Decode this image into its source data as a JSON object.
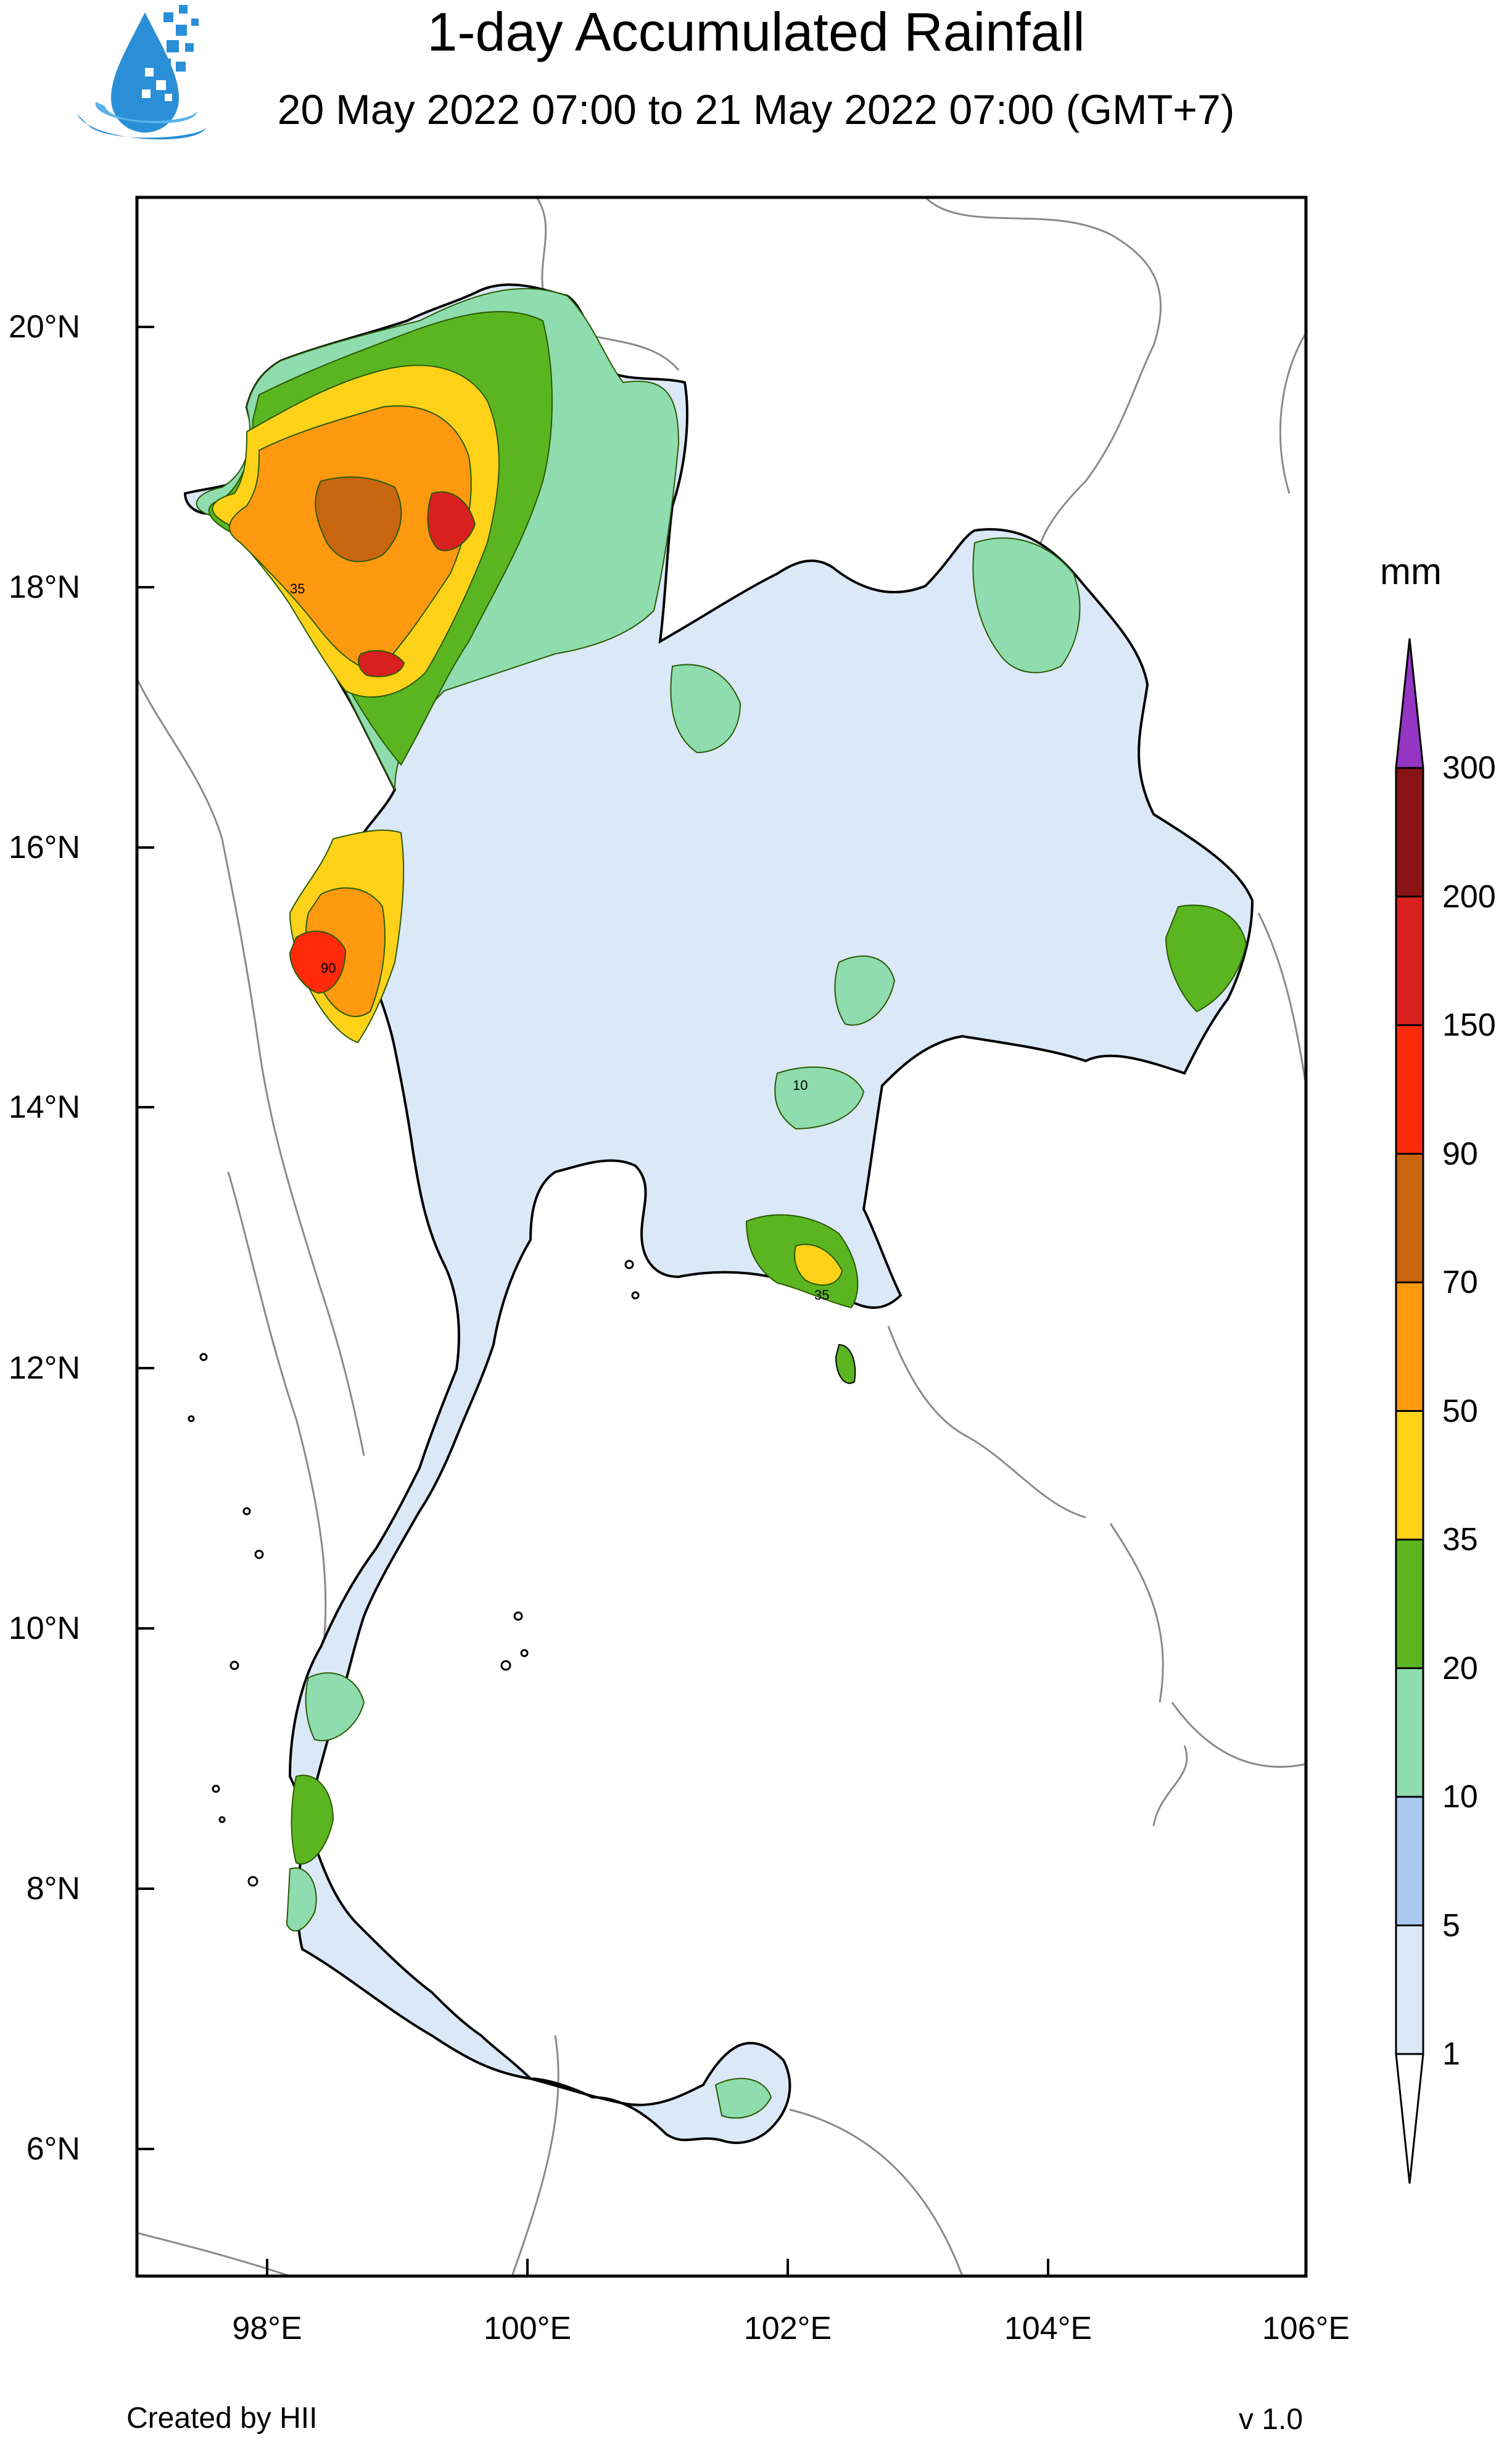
{
  "header": {
    "title": "1-day Accumulated Rainfall",
    "subtitle": "20 May 2022 07:00 to 21 May 2022 07:00 (GMT+7)"
  },
  "map": {
    "lat_labels": [
      "20°N",
      "18°N",
      "16°N",
      "14°N",
      "12°N",
      "10°N",
      "8°N",
      "6°N"
    ],
    "lon_labels": [
      "98°E",
      "100°E",
      "102°E",
      "104°E",
      "106°E"
    ],
    "contour_labels": [
      "10",
      "35",
      "90"
    ]
  },
  "colorbar": {
    "unit": "mm",
    "levels": [
      "1",
      "5",
      "10",
      "20",
      "35",
      "50",
      "70",
      "90",
      "150",
      "200",
      "300"
    ],
    "colors": [
      "#dbe8f8",
      "#a9c9f0",
      "#8fdcae",
      "#5ab521",
      "#ffd21a",
      "#ff9a10",
      "#c8650f",
      "#ff2a0a",
      "#d8201f",
      "#8a1313",
      "#9535c4"
    ]
  },
  "footer": {
    "credit": "Created by HII",
    "version": "v 1.0"
  }
}
